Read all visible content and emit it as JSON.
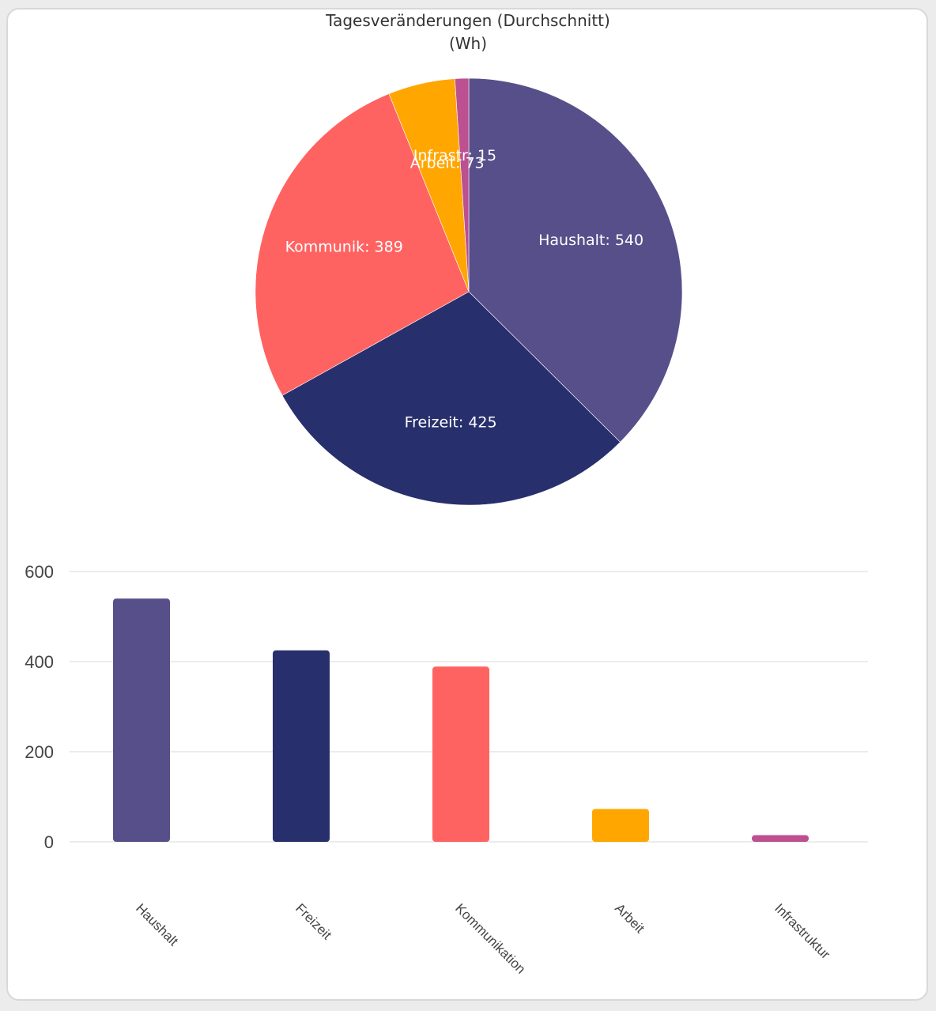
{
  "chart_title": {
    "line1": "Tagesveränderungen (Durchschnitt)",
    "line2": "(Wh)"
  },
  "chart_data": [
    {
      "type": "pie",
      "title": "Tagesveränderungen (Durchschnitt) (Wh)",
      "slices": [
        {
          "name": "Haushalt",
          "label": "Haushalt: 540",
          "value": 540,
          "color": "#574f8a"
        },
        {
          "name": "Freizeit",
          "label": "Freizeit: 425",
          "value": 425,
          "color": "#272f6c"
        },
        {
          "name": "Kommunikation",
          "label": "Kommunik: 389",
          "value": 389,
          "color": "#ff6361"
        },
        {
          "name": "Arbeit",
          "label": "Arbeit: 73",
          "value": 73,
          "color": "#ffa600"
        },
        {
          "name": "Infrastruktur",
          "label": "Infrastr: 15",
          "value": 15,
          "color": "#bc5090"
        }
      ]
    },
    {
      "type": "bar",
      "categories": [
        "Haushalt",
        "Freizeit",
        "Kommunikation",
        "Arbeit",
        "Infrastruktur"
      ],
      "values": [
        540,
        425,
        389,
        73,
        15
      ],
      "colors": [
        "#574f8a",
        "#272f6c",
        "#ff6361",
        "#ffa600",
        "#bc5090"
      ],
      "ylim": [
        0,
        600
      ],
      "yticks": [
        "0",
        "200",
        "400",
        "600"
      ],
      "grid": true
    }
  ]
}
